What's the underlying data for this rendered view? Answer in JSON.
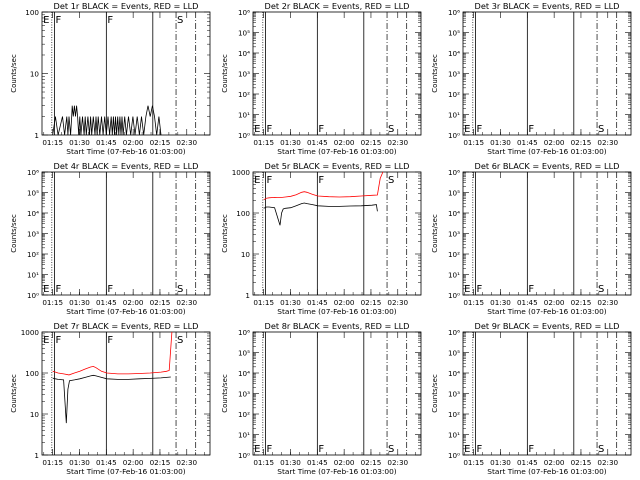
{
  "page": {
    "x_tick_labels": [
      "01:15",
      "01:30",
      "01:45",
      "02:00",
      "02:15",
      "02:30"
    ],
    "xlabel": "Start Time (07-Feb-16 01:03:00)",
    "ylabel": "Counts/sec",
    "series_events_color": "#000000",
    "series_lld_color": "#ff0000"
  },
  "chart_data": [
    {
      "type": "line",
      "title": "Det 1r BLACK = Events, RED = LLD",
      "y_scale": "log",
      "ylim": [
        1,
        100
      ],
      "y_ticks": [
        {
          "v": 1,
          "label": "1"
        },
        {
          "v": 10,
          "label": "10"
        },
        {
          "v": 100,
          "label": "100"
        }
      ],
      "flag_labels": [
        "E",
        "F",
        "F",
        "S"
      ],
      "series": [
        {
          "kind": "events",
          "points": [
            [
              1.0,
              1
            ],
            [
              1.05,
              2
            ],
            [
              1.1,
              1
            ],
            [
              1.18,
              2
            ],
            [
              1.22,
              1
            ],
            [
              1.26,
              2
            ],
            [
              1.28,
              1
            ],
            [
              1.3,
              2
            ],
            [
              1.33,
              1
            ],
            [
              1.35,
              2
            ],
            [
              1.36,
              3
            ],
            [
              1.38,
              2
            ],
            [
              1.4,
              3
            ],
            [
              1.42,
              2
            ],
            [
              1.44,
              3
            ],
            [
              1.46,
              2
            ],
            [
              1.48,
              1
            ],
            [
              1.5,
              2
            ],
            [
              1.52,
              1
            ],
            [
              1.55,
              2
            ],
            [
              1.58,
              1
            ],
            [
              1.6,
              2
            ],
            [
              1.62,
              1
            ],
            [
              1.65,
              2
            ],
            [
              1.68,
              1
            ],
            [
              1.7,
              2
            ],
            [
              1.72,
              1
            ],
            [
              1.75,
              2
            ],
            [
              1.78,
              1
            ],
            [
              1.8,
              2
            ],
            [
              1.82,
              1
            ],
            [
              1.84,
              2
            ],
            [
              1.87,
              1
            ],
            [
              1.9,
              2
            ],
            [
              1.93,
              1
            ],
            [
              1.96,
              2
            ],
            [
              1.99,
              1
            ],
            [
              2.02,
              2
            ],
            [
              2.05,
              1
            ],
            [
              2.08,
              2
            ],
            [
              2.1,
              1
            ],
            [
              2.12,
              2
            ],
            [
              2.14,
              1
            ],
            [
              2.16,
              2
            ],
            [
              2.18,
              1
            ],
            [
              2.2,
              2
            ],
            [
              2.22,
              1
            ],
            [
              2.24,
              2
            ],
            [
              2.26,
              1
            ],
            [
              2.28,
              2
            ],
            [
              2.3,
              1
            ],
            [
              2.33,
              2
            ],
            [
              2.36,
              1
            ],
            [
              2.4,
              2
            ],
            [
              2.44,
              1
            ],
            [
              2.48,
              2
            ],
            [
              2.52,
              1
            ],
            [
              2.56,
              2
            ],
            [
              2.6,
              1
            ],
            [
              2.64,
              2
            ],
            [
              2.68,
              1
            ],
            [
              2.72,
              2
            ],
            [
              2.76,
              3
            ],
            [
              2.8,
              2
            ],
            [
              2.84,
              3
            ],
            [
              2.88,
              2
            ],
            [
              2.92,
              1
            ],
            [
              2.96,
              2
            ],
            [
              3.0,
              1
            ]
          ]
        }
      ]
    },
    {
      "type": "line",
      "title": "Det 2r BLACK = Events, RED = LLD",
      "y_scale": "log",
      "ylim": [
        1,
        1000000
      ],
      "y_ticks": [
        {
          "v": 1,
          "label": "10⁰"
        },
        {
          "v": 10,
          "label": "10¹"
        },
        {
          "v": 100,
          "label": "10²"
        },
        {
          "v": 1000,
          "label": "10³"
        },
        {
          "v": 10000,
          "label": "10⁴"
        },
        {
          "v": 100000,
          "label": "10⁵"
        },
        {
          "v": 1000000,
          "label": "10⁶"
        }
      ],
      "flag_labels": [
        "E",
        "F",
        "F",
        "S"
      ],
      "series": []
    },
    {
      "type": "line",
      "title": "Det 3r BLACK = Events, RED = LLD",
      "y_scale": "log",
      "ylim": [
        1,
        1000000
      ],
      "y_ticks": [
        {
          "v": 1,
          "label": "10⁰"
        },
        {
          "v": 10,
          "label": "10¹"
        },
        {
          "v": 100,
          "label": "10²"
        },
        {
          "v": 1000,
          "label": "10³"
        },
        {
          "v": 10000,
          "label": "10⁴"
        },
        {
          "v": 100000,
          "label": "10⁵"
        },
        {
          "v": 1000000,
          "label": "10⁶"
        }
      ],
      "flag_labels": [
        "E",
        "F",
        "F",
        "S"
      ],
      "series": []
    },
    {
      "type": "line",
      "title": "Det 4r BLACK = Events, RED = LLD",
      "y_scale": "log",
      "ylim": [
        1,
        1000000
      ],
      "y_ticks": [
        {
          "v": 1,
          "label": "10⁰"
        },
        {
          "v": 10,
          "label": "10¹"
        },
        {
          "v": 100,
          "label": "10²"
        },
        {
          "v": 1000,
          "label": "10³"
        },
        {
          "v": 10000,
          "label": "10⁴"
        },
        {
          "v": 100000,
          "label": "10⁵"
        },
        {
          "v": 1000000,
          "label": "10⁶"
        }
      ],
      "flag_labels": [
        "E",
        "F",
        "F",
        "S"
      ],
      "series": []
    },
    {
      "type": "line",
      "title": "Det 5r BLACK = Events, RED = LLD",
      "y_scale": "log",
      "ylim": [
        1,
        1000
      ],
      "y_ticks": [
        {
          "v": 1,
          "label": "1"
        },
        {
          "v": 10,
          "label": "10"
        },
        {
          "v": 100,
          "label": "100"
        },
        {
          "v": 1000,
          "label": "1000"
        }
      ],
      "flag_labels": [
        "E",
        "F",
        "F",
        "S"
      ],
      "series": [
        {
          "kind": "lld",
          "points": [
            [
              1.0,
              210
            ],
            [
              1.05,
              230
            ],
            [
              1.1,
              235
            ],
            [
              1.2,
              240
            ],
            [
              1.3,
              238
            ],
            [
              1.4,
              245
            ],
            [
              1.5,
              255
            ],
            [
              1.6,
              280
            ],
            [
              1.7,
              320
            ],
            [
              1.75,
              330
            ],
            [
              1.8,
              320
            ],
            [
              1.9,
              285
            ],
            [
              2.0,
              260
            ],
            [
              2.2,
              250
            ],
            [
              2.4,
              245
            ],
            [
              2.6,
              250
            ],
            [
              2.8,
              260
            ],
            [
              3.0,
              270
            ],
            [
              3.1,
              275
            ],
            [
              3.15,
              700
            ],
            [
              3.2,
              1000
            ]
          ]
        },
        {
          "kind": "events",
          "points": [
            [
              1.0,
              130
            ],
            [
              1.05,
              140
            ],
            [
              1.1,
              140
            ],
            [
              1.2,
              135
            ],
            [
              1.3,
              50
            ],
            [
              1.33,
              100
            ],
            [
              1.36,
              125
            ],
            [
              1.4,
              130
            ],
            [
              1.5,
              135
            ],
            [
              1.6,
              150
            ],
            [
              1.7,
              170
            ],
            [
              1.75,
              175
            ],
            [
              1.8,
              170
            ],
            [
              1.9,
              160
            ],
            [
              2.0,
              150
            ],
            [
              2.2,
              145
            ],
            [
              2.4,
              145
            ],
            [
              2.6,
              148
            ],
            [
              2.8,
              150
            ],
            [
              3.0,
              155
            ],
            [
              3.08,
              160
            ],
            [
              3.1,
              110
            ]
          ]
        }
      ]
    },
    {
      "type": "line",
      "title": "Det 6r BLACK = Events, RED = LLD",
      "y_scale": "log",
      "ylim": [
        1,
        1000000
      ],
      "y_ticks": [
        {
          "v": 1,
          "label": "10⁰"
        },
        {
          "v": 10,
          "label": "10¹"
        },
        {
          "v": 100,
          "label": "10²"
        },
        {
          "v": 1000,
          "label": "10³"
        },
        {
          "v": 10000,
          "label": "10⁴"
        },
        {
          "v": 100000,
          "label": "10⁵"
        },
        {
          "v": 1000000,
          "label": "10⁶"
        }
      ],
      "flag_labels": [
        "E",
        "F",
        "F",
        "S"
      ],
      "series": []
    },
    {
      "type": "line",
      "title": "Det 7r BLACK = Events, RED = LLD",
      "y_scale": "log",
      "ylim": [
        1,
        1000
      ],
      "y_ticks": [
        {
          "v": 1,
          "label": "1"
        },
        {
          "v": 10,
          "label": "10"
        },
        {
          "v": 100,
          "label": "100"
        },
        {
          "v": 1000,
          "label": "1000"
        }
      ],
      "flag_labels": [
        "E",
        "F",
        "F",
        "S"
      ],
      "series": [
        {
          "kind": "lld",
          "points": [
            [
              1.0,
              110
            ],
            [
              1.05,
              105
            ],
            [
              1.1,
              100
            ],
            [
              1.2,
              95
            ],
            [
              1.3,
              90
            ],
            [
              1.4,
              100
            ],
            [
              1.5,
              110
            ],
            [
              1.6,
              125
            ],
            [
              1.7,
              140
            ],
            [
              1.75,
              145
            ],
            [
              1.8,
              135
            ],
            [
              1.9,
              110
            ],
            [
              2.0,
              100
            ],
            [
              2.2,
              95
            ],
            [
              2.4,
              95
            ],
            [
              2.6,
              97
            ],
            [
              2.8,
              100
            ],
            [
              3.0,
              105
            ],
            [
              3.1,
              110
            ],
            [
              3.15,
              115
            ],
            [
              3.2,
              1000
            ]
          ]
        },
        {
          "kind": "events",
          "points": [
            [
              1.0,
              75
            ],
            [
              1.05,
              72
            ],
            [
              1.1,
              70
            ],
            [
              1.2,
              68
            ],
            [
              1.25,
              6
            ],
            [
              1.28,
              40
            ],
            [
              1.31,
              65
            ],
            [
              1.4,
              68
            ],
            [
              1.5,
              72
            ],
            [
              1.6,
              78
            ],
            [
              1.7,
              85
            ],
            [
              1.75,
              88
            ],
            [
              1.8,
              85
            ],
            [
              1.9,
              78
            ],
            [
              2.0,
              72
            ],
            [
              2.2,
              70
            ],
            [
              2.4,
              70
            ],
            [
              2.6,
              72
            ],
            [
              2.8,
              74
            ],
            [
              3.0,
              76
            ],
            [
              3.1,
              78
            ],
            [
              3.18,
              80
            ]
          ]
        }
      ]
    },
    {
      "type": "line",
      "title": "Det 8r BLACK = Events, RED = LLD",
      "y_scale": "log",
      "ylim": [
        1,
        1000000
      ],
      "y_ticks": [
        {
          "v": 1,
          "label": "10⁰"
        },
        {
          "v": 10,
          "label": "10¹"
        },
        {
          "v": 100,
          "label": "10²"
        },
        {
          "v": 1000,
          "label": "10³"
        },
        {
          "v": 10000,
          "label": "10⁴"
        },
        {
          "v": 100000,
          "label": "10⁵"
        },
        {
          "v": 1000000,
          "label": "10⁶"
        }
      ],
      "flag_labels": [
        "E",
        "F",
        "F",
        "S"
      ],
      "series": []
    },
    {
      "type": "line",
      "title": "Det 9r BLACK = Events, RED = LLD",
      "y_scale": "log",
      "ylim": [
        1,
        1000000
      ],
      "y_ticks": [
        {
          "v": 1,
          "label": "10⁰"
        },
        {
          "v": 10,
          "label": "10¹"
        },
        {
          "v": 100,
          "label": "10²"
        },
        {
          "v": 1000,
          "label": "10³"
        },
        {
          "v": 10000,
          "label": "10⁴"
        },
        {
          "v": 100000,
          "label": "10⁵"
        },
        {
          "v": 1000000,
          "label": "10⁶"
        }
      ],
      "flag_labels": [
        "E",
        "F",
        "F",
        "S"
      ],
      "series": []
    }
  ]
}
